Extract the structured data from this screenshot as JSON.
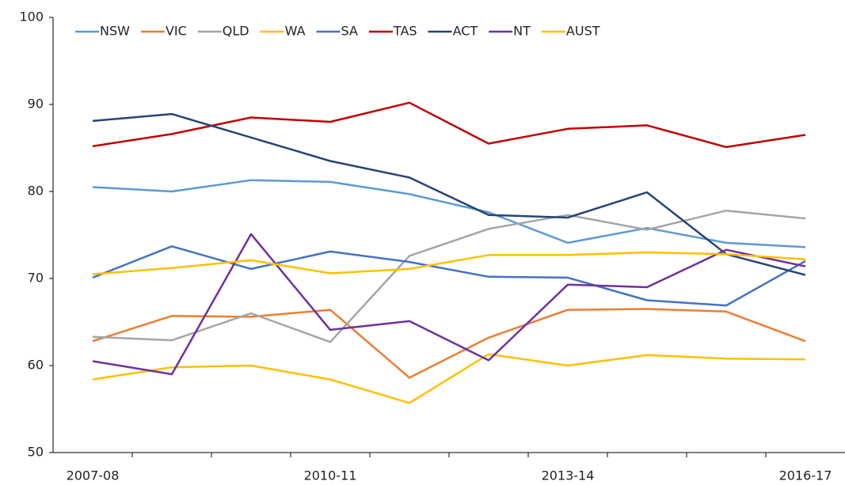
{
  "chart_data": {
    "type": "line",
    "categories": [
      "2007-08",
      null,
      null,
      "2010-11",
      null,
      null,
      "2013-14",
      null,
      null,
      "2016-17"
    ],
    "ylim": [
      50,
      100
    ],
    "yticks": [
      50,
      60,
      70,
      80,
      90,
      100
    ],
    "grid": false,
    "legend": "top-left",
    "series": [
      {
        "name": "NSW",
        "color": "#5b9bd5",
        "values": [
          80.5,
          80.0,
          81.3,
          81.1,
          79.7,
          77.6,
          74.1,
          75.8,
          74.1,
          73.6
        ]
      },
      {
        "name": "VIC",
        "color": "#ed7d31",
        "values": [
          62.8,
          65.7,
          65.6,
          66.4,
          58.6,
          63.2,
          66.4,
          66.5,
          66.2,
          62.8
        ]
      },
      {
        "name": "QLD",
        "color": "#a5a5a5",
        "values": [
          63.3,
          62.9,
          66.0,
          62.7,
          72.6,
          75.7,
          77.3,
          75.6,
          77.8,
          76.9
        ]
      },
      {
        "name": "WA",
        "color": "#ffc000",
        "values": [
          58.4,
          59.8,
          60.0,
          58.4,
          55.7,
          61.3,
          60.0,
          61.2,
          60.8,
          60.7
        ]
      },
      {
        "name": "SA",
        "color": "#4472c4",
        "values": [
          70.1,
          73.7,
          71.1,
          73.1,
          71.9,
          70.2,
          70.1,
          67.5,
          66.9,
          72.0
        ]
      },
      {
        "name": "TAS",
        "color": "#c00000",
        "values": [
          85.2,
          86.6,
          88.5,
          88.0,
          90.2,
          85.5,
          87.2,
          87.6,
          85.1,
          86.5
        ]
      },
      {
        "name": "ACT",
        "color": "#264478",
        "values": [
          88.1,
          88.9,
          86.2,
          83.5,
          81.6,
          77.3,
          77.0,
          79.9,
          72.8,
          70.4
        ]
      },
      {
        "name": "NT",
        "color": "#7030a0",
        "values": [
          60.5,
          59.0,
          75.1,
          64.1,
          65.1,
          60.6,
          69.3,
          69.0,
          73.3,
          71.4
        ]
      },
      {
        "name": "AUST",
        "color": "#ffc000",
        "values": [
          70.5,
          71.2,
          72.1,
          70.6,
          71.1,
          72.7,
          72.7,
          73.0,
          72.8,
          72.2
        ]
      }
    ]
  }
}
